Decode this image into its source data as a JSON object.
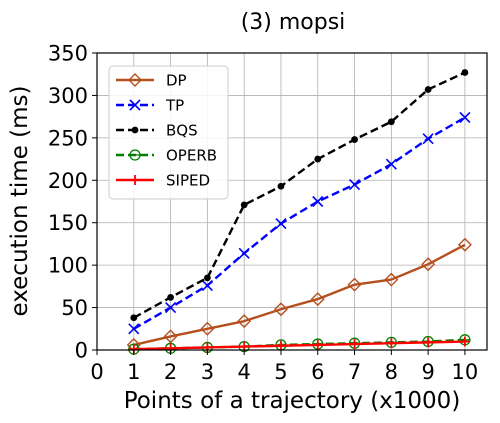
{
  "chart_data": {
    "type": "line",
    "title": "(3) mopsi",
    "xlabel": "Points of a trajectory (x1000)",
    "ylabel": "execution time (ms)",
    "xlim": [
      0,
      10.6
    ],
    "ylim": [
      0,
      350
    ],
    "x_ticks": [
      "0",
      "1",
      "2",
      "3",
      "4",
      "5",
      "6",
      "7",
      "8",
      "9",
      "10"
    ],
    "y_ticks": [
      "0",
      "50",
      "100",
      "150",
      "200",
      "250",
      "300",
      "350"
    ],
    "grid": true,
    "legend_position": "top-left",
    "x": [
      1,
      2,
      3,
      4,
      5,
      6,
      7,
      8,
      9,
      10
    ],
    "series": [
      {
        "name": "DP",
        "color": "#b5501e",
        "linestyle": "solid",
        "marker": "diamond-open",
        "values": [
          6,
          16,
          25,
          34,
          48,
          60,
          77,
          83,
          101,
          124
        ]
      },
      {
        "name": "TP",
        "color": "#0000ff",
        "linestyle": "dashed",
        "marker": "x",
        "values": [
          25,
          50,
          76,
          114,
          149,
          175,
          195,
          219,
          249,
          274
        ]
      },
      {
        "name": "BQS",
        "color": "#000000",
        "linestyle": "dashed",
        "marker": "dot",
        "values": [
          38,
          62,
          85,
          171,
          193,
          225,
          248,
          269,
          307,
          327
        ]
      },
      {
        "name": "OPERB",
        "color": "#008000",
        "linestyle": "dashed",
        "marker": "circle-open-bar",
        "values": [
          1,
          2,
          3,
          4,
          6,
          7,
          8,
          9,
          10,
          12
        ]
      },
      {
        "name": "SIPED",
        "color": "#ff0000",
        "linestyle": "solid",
        "marker": "plus",
        "values": [
          1,
          2,
          3,
          4,
          5,
          6,
          7,
          8,
          9,
          10
        ]
      }
    ]
  }
}
